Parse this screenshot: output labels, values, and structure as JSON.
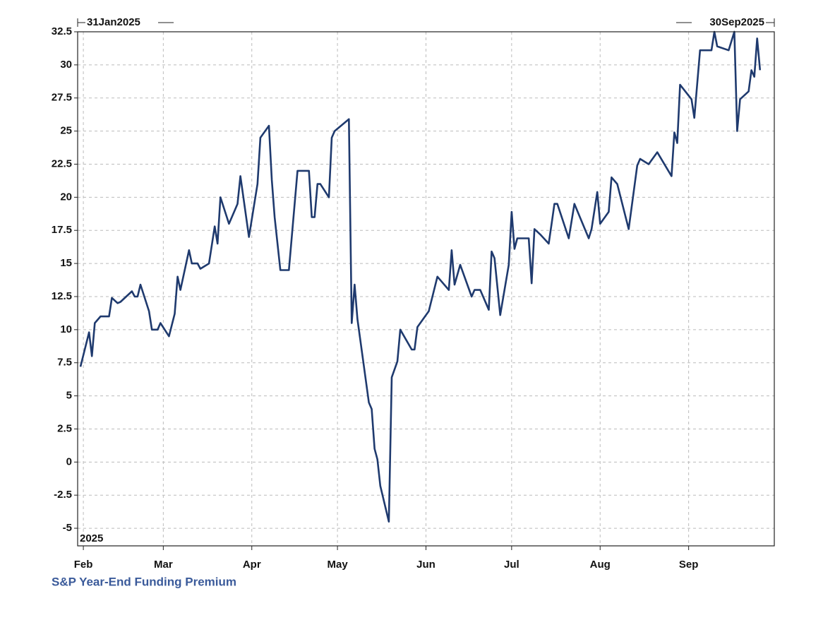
{
  "chart_data": {
    "type": "line",
    "start_label": "31Jan2025",
    "end_label": "30Sep2025",
    "year_label": "2025",
    "xlim": [
      "2025-01-30",
      "2025-10-01"
    ],
    "xticks": [
      {
        "value": "2025-02-01",
        "label": "Feb"
      },
      {
        "value": "2025-03-01",
        "label": "Mar"
      },
      {
        "value": "2025-04-01",
        "label": "Apr"
      },
      {
        "value": "2025-05-01",
        "label": "May"
      },
      {
        "value": "2025-06-01",
        "label": "Jun"
      },
      {
        "value": "2025-07-01",
        "label": "Jul"
      },
      {
        "value": "2025-08-01",
        "label": "Aug"
      },
      {
        "value": "2025-09-01",
        "label": "Sep"
      }
    ],
    "ylim": [
      -6.33,
      32.5
    ],
    "yticks": [
      32.5,
      30,
      27.5,
      25,
      22.5,
      20,
      17.5,
      15,
      12.5,
      10,
      7.5,
      5,
      2.5,
      0,
      -2.5,
      -5
    ],
    "grid": true,
    "x": [
      "2025-01-31",
      "2025-02-03",
      "2025-02-04",
      "2025-02-05",
      "2025-02-07",
      "2025-02-10",
      "2025-02-11",
      "2025-02-13",
      "2025-02-14",
      "2025-02-18",
      "2025-02-19",
      "2025-02-20",
      "2025-02-21",
      "2025-02-24",
      "2025-02-25",
      "2025-02-27",
      "2025-02-28",
      "2025-03-03",
      "2025-03-05",
      "2025-03-06",
      "2025-03-07",
      "2025-03-10",
      "2025-03-11",
      "2025-03-13",
      "2025-03-14",
      "2025-03-17",
      "2025-03-19",
      "2025-03-20",
      "2025-03-21",
      "2025-03-24",
      "2025-03-26",
      "2025-03-27",
      "2025-03-28",
      "2025-03-31",
      "2025-04-03",
      "2025-04-04",
      "2025-04-07",
      "2025-04-08",
      "2025-04-09",
      "2025-04-11",
      "2025-04-14",
      "2025-04-17",
      "2025-04-21",
      "2025-04-22",
      "2025-04-23",
      "2025-04-24",
      "2025-04-25",
      "2025-04-28",
      "2025-04-29",
      "2025-04-30",
      "2025-05-05",
      "2025-05-06",
      "2025-05-07",
      "2025-05-08",
      "2025-05-12",
      "2025-05-13",
      "2025-05-14",
      "2025-05-15",
      "2025-05-16",
      "2025-05-19",
      "2025-05-20",
      "2025-05-22",
      "2025-05-23",
      "2025-05-27",
      "2025-05-28",
      "2025-05-29",
      "2025-06-02",
      "2025-06-05",
      "2025-06-09",
      "2025-06-10",
      "2025-06-11",
      "2025-06-13",
      "2025-06-17",
      "2025-06-18",
      "2025-06-20",
      "2025-06-23",
      "2025-06-24",
      "2025-06-25",
      "2025-06-27",
      "2025-06-30",
      "2025-07-01",
      "2025-07-02",
      "2025-07-03",
      "2025-07-07",
      "2025-07-08",
      "2025-07-09",
      "2025-07-11",
      "2025-07-14",
      "2025-07-15",
      "2025-07-16",
      "2025-07-17",
      "2025-07-21",
      "2025-07-23",
      "2025-07-28",
      "2025-07-29",
      "2025-07-31",
      "2025-08-01",
      "2025-08-04",
      "2025-08-05",
      "2025-08-07",
      "2025-08-11",
      "2025-08-14",
      "2025-08-15",
      "2025-08-18",
      "2025-08-21",
      "2025-08-26",
      "2025-08-27",
      "2025-08-28",
      "2025-08-29",
      "2025-09-02",
      "2025-09-03",
      "2025-09-05",
      "2025-09-09",
      "2025-09-10",
      "2025-09-11",
      "2025-09-15",
      "2025-09-17",
      "2025-09-18",
      "2025-09-19",
      "2025-09-22",
      "2025-09-23",
      "2025-09-24",
      "2025-09-25",
      "2025-09-26"
    ],
    "series": [
      {
        "name": "S&P Year-End Funding Premium",
        "color": "#1f3a6e",
        "values": [
          7.2,
          9.8,
          8.0,
          10.5,
          11.0,
          11.0,
          12.4,
          12.0,
          12.1,
          12.9,
          12.5,
          12.5,
          13.4,
          11.4,
          10.0,
          10.0,
          10.5,
          9.5,
          11.2,
          14.0,
          13.0,
          16.0,
          15.0,
          15.0,
          14.6,
          15.0,
          17.8,
          16.5,
          20.0,
          18.0,
          19.0,
          19.5,
          21.6,
          17.0,
          21.0,
          24.5,
          25.4,
          21.3,
          18.5,
          14.5,
          14.5,
          22.0,
          22.0,
          18.5,
          18.5,
          21.0,
          21.0,
          20.0,
          24.5,
          25.0,
          25.9,
          10.5,
          13.4,
          10.8,
          4.5,
          4.0,
          1.0,
          0.2,
          -1.8,
          -4.5,
          6.4,
          7.6,
          10.0,
          8.5,
          8.5,
          10.2,
          11.4,
          14.0,
          13.0,
          16.0,
          13.4,
          14.9,
          12.5,
          13.0,
          13.0,
          11.5,
          15.9,
          15.4,
          11.1,
          14.9,
          18.9,
          16.1,
          16.9,
          16.9,
          13.5,
          17.6,
          17.2,
          16.5,
          18.0,
          19.5,
          19.5,
          16.9,
          19.5,
          16.9,
          17.6,
          20.4,
          18.0,
          18.9,
          21.5,
          21.0,
          17.6,
          22.4,
          22.9,
          22.5,
          23.4,
          21.6,
          24.9,
          24.1,
          28.5,
          27.4,
          26.0,
          31.1,
          31.1,
          32.5,
          31.4,
          31.1,
          32.5,
          25.0,
          27.4,
          28.0,
          29.6,
          29.1,
          32.0,
          29.6
        ]
      }
    ]
  }
}
